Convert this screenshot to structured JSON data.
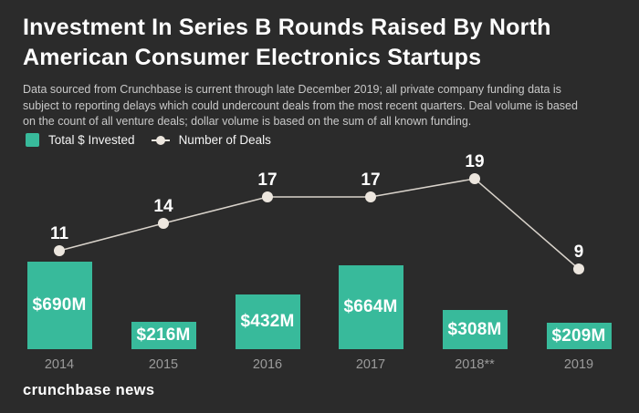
{
  "header": {
    "title": "Investment In Series B Rounds Raised By North American Consumer Electronics Startups",
    "subtitle": "Data sourced from Crunchbase is current through late December 2019; all private company funding data is subject to reporting delays which could undercount deals from the most recent quarters. Deal volume is based on the count of all venture deals; dollar volume is based on the sum of all known funding."
  },
  "legend": {
    "items": [
      {
        "label": "Total $ Invested",
        "marker": "green-square-swatch"
      },
      {
        "label": "Number of Deals",
        "marker": "line-with-dot"
      }
    ]
  },
  "chart_data": {
    "type": "bar+line combo",
    "categories": [
      "2014",
      "2015",
      "2016",
      "2017",
      "2018**",
      "2019"
    ],
    "series": [
      {
        "name": "Total $ Invested",
        "type": "bar",
        "unit": "USD millions",
        "values": [
          690,
          216,
          432,
          664,
          308,
          209
        ],
        "labels": [
          "$690M",
          "$216M",
          "$432M",
          "$664M",
          "$308M",
          "$209M"
        ],
        "color": "#38ba9b"
      },
      {
        "name": "Number of Deals",
        "type": "line",
        "values": [
          11,
          14,
          17,
          17,
          19,
          9
        ],
        "color": "#ece6de"
      }
    ],
    "title": "Investment In Series B Rounds Raised By North American Consumer Electronics Startups",
    "xlabel": "",
    "ylabel": "",
    "bar_value_range": [
      0,
      690
    ],
    "line_value_range": [
      0,
      19
    ],
    "grid": false,
    "axes_shown": false,
    "value_labels_shown": true,
    "legend_position": "top-left"
  },
  "colors": {
    "background": "#2b2b2b",
    "bar": "#38ba9b",
    "line": "#d9d3cb",
    "dot": "#ece6de",
    "title_text": "#ffffff",
    "subtitle_text": "#c9c9c9",
    "year_text": "#9b9b9b",
    "value_text": "#ffffff"
  },
  "footer": {
    "brand": "crunchbase news"
  }
}
